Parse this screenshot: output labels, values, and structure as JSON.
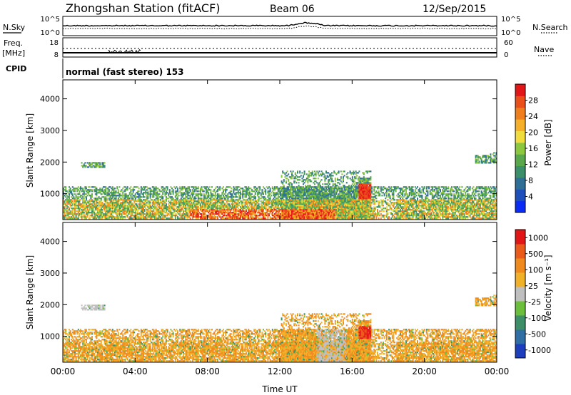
{
  "header": {
    "station": "Zhongshan Station (fitACF)",
    "beam": "Beam 06",
    "date": "12/Sep/2015"
  },
  "noise_panel": {
    "left_label": "N.Sky",
    "left_ticks": [
      "10^5",
      "10^0"
    ],
    "right_ticks": [
      "10^5",
      "10^0"
    ],
    "right_label": "N.Search"
  },
  "freq_panel": {
    "left_label_line1": "Freq.",
    "left_label_line2": "[MHz]",
    "left_ticks": [
      "18",
      "8"
    ],
    "right_ticks": [
      "60",
      "0"
    ],
    "right_label": "Nave"
  },
  "cpid_panel": {
    "label": "CPID",
    "text": "normal (fast stereo) 153"
  },
  "chart_data": [
    {
      "type": "heatmap",
      "panel": "power",
      "ylabel": "Slant Range [km]",
      "yticks": [
        "1000",
        "2000",
        "3000",
        "4000"
      ],
      "ylim": [
        180,
        4600
      ],
      "xlim": [
        0,
        24
      ],
      "xticks": [
        "00:00",
        "04:00",
        "08:00",
        "12:00",
        "16:00",
        "20:00",
        "00:00"
      ],
      "colorbar": {
        "label": "Power [dB]",
        "tick_labels": [
          "4",
          "8",
          "12",
          "16",
          "20",
          "24",
          "28"
        ],
        "colors": [
          "#0a2cf5",
          "#1f4fb8",
          "#2f6f96",
          "#3b8f6a",
          "#5aa84c",
          "#8dc63f",
          "#f0dc3c",
          "#f5b02a",
          "#ef7f1e",
          "#ea4e1a",
          "#e21616"
        ]
      }
    },
    {
      "type": "heatmap",
      "panel": "velocity",
      "ylabel": "Slant Range [km]",
      "yticks": [
        "1000",
        "2000",
        "3000",
        "4000"
      ],
      "ylim": [
        180,
        4600
      ],
      "xlim": [
        0,
        24
      ],
      "xticks": [
        "00:00",
        "04:00",
        "08:00",
        "12:00",
        "16:00",
        "20:00",
        "00:00"
      ],
      "xlabel": "Time UT",
      "colorbar": {
        "label": "Velocity [m s⁻¹]",
        "tick_labels": [
          "1000",
          "500",
          "100",
          "25",
          "-25",
          "-100",
          "-500",
          "-1000"
        ],
        "colors": [
          "#1e3fbd",
          "#2f6fa6",
          "#3c8f66",
          "#6cbf3c",
          "#bfbfbf",
          "#f0b028",
          "#ef8a1e",
          "#ea5a1a",
          "#e21616"
        ]
      }
    }
  ]
}
